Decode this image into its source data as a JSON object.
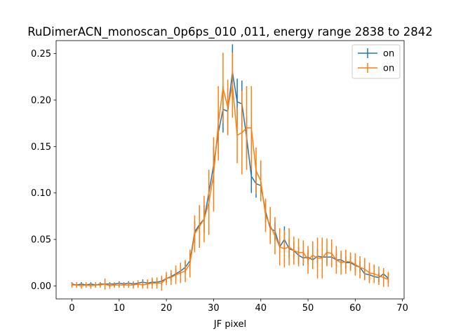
{
  "chart_data": {
    "type": "line",
    "title": "RuDimerACN_monoscan_0p6ps_010 ,011, energy range 2838 to 2842",
    "xlabel": "JF pixel",
    "ylabel": "",
    "xlim": [
      -3.35,
      70.35
    ],
    "ylim": [
      -0.014,
      0.264
    ],
    "xticks": [
      0,
      10,
      20,
      30,
      40,
      50,
      60,
      70
    ],
    "yticks": [
      0.0,
      0.05,
      0.1,
      0.15,
      0.2,
      0.25
    ],
    "xtick_labels": [
      "0",
      "10",
      "20",
      "30",
      "40",
      "50",
      "60",
      "70"
    ],
    "ytick_labels": [
      "0.00",
      "0.05",
      "0.10",
      "0.15",
      "0.20",
      "0.25"
    ],
    "grid": false,
    "legend_position": "top-right",
    "x": [
      0,
      1,
      2,
      3,
      4,
      5,
      6,
      7,
      8,
      9,
      10,
      11,
      12,
      13,
      14,
      15,
      16,
      17,
      18,
      19,
      20,
      21,
      22,
      23,
      24,
      25,
      26,
      27,
      28,
      29,
      30,
      31,
      32,
      33,
      34,
      35,
      36,
      37,
      38,
      39,
      40,
      41,
      42,
      43,
      44,
      45,
      46,
      47,
      48,
      49,
      50,
      51,
      52,
      53,
      54,
      55,
      56,
      57,
      58,
      59,
      60,
      61,
      62,
      63,
      64,
      65,
      66,
      67
    ],
    "series": [
      {
        "name": "on",
        "color": "#1f77b4",
        "values": [
          0.002,
          0.001,
          0.002,
          0.001,
          0.002,
          0.001,
          0.002,
          0.002,
          0.002,
          0.002,
          0.003,
          0.002,
          0.003,
          0.002,
          0.003,
          0.004,
          0.003,
          0.004,
          0.004,
          0.005,
          0.008,
          0.01,
          0.013,
          0.016,
          0.02,
          0.027,
          0.058,
          0.066,
          0.072,
          0.1,
          0.13,
          0.165,
          0.19,
          0.188,
          0.23,
          0.198,
          0.196,
          0.16,
          0.118,
          0.11,
          0.108,
          0.08,
          0.062,
          0.059,
          0.042,
          0.05,
          0.04,
          0.038,
          0.033,
          0.03,
          0.031,
          0.028,
          0.032,
          0.031,
          0.031,
          0.031,
          0.028,
          0.028,
          0.025,
          0.025,
          0.022,
          0.02,
          0.013,
          0.012,
          0.01,
          0.009,
          0.013,
          0.008
        ],
        "errors": [
          0.002,
          0.002,
          0.002,
          0.002,
          0.002,
          0.002,
          0.002,
          0.002,
          0.002,
          0.002,
          0.002,
          0.002,
          0.002,
          0.002,
          0.003,
          0.003,
          0.003,
          0.003,
          0.003,
          0.004,
          0.004,
          0.004,
          0.005,
          0.005,
          0.006,
          0.009,
          0.012,
          0.013,
          0.015,
          0.017,
          0.02,
          0.023,
          0.025,
          0.025,
          0.03,
          0.025,
          0.025,
          0.022,
          0.018,
          0.015,
          0.014,
          0.012,
          0.01,
          0.01,
          0.009,
          0.014,
          0.01,
          0.009,
          0.009,
          0.008,
          0.008,
          0.008,
          0.008,
          0.008,
          0.008,
          0.008,
          0.007,
          0.007,
          0.007,
          0.007,
          0.007,
          0.006,
          0.006,
          0.006,
          0.005,
          0.005,
          0.006,
          0.005
        ]
      },
      {
        "name": "on",
        "color": "#ff7f0e",
        "values": [
          0.001,
          0.001,
          0.0,
          0.001,
          0.0,
          0.001,
          0.001,
          0.002,
          0.0,
          0.001,
          0.001,
          0.001,
          0.001,
          0.001,
          0.002,
          0.001,
          0.002,
          0.003,
          0.003,
          0.003,
          0.008,
          0.009,
          0.012,
          0.014,
          0.016,
          0.024,
          0.056,
          0.064,
          0.072,
          0.09,
          0.12,
          0.175,
          0.213,
          0.192,
          0.216,
          0.162,
          0.165,
          0.17,
          0.17,
          0.124,
          0.113,
          0.076,
          0.065,
          0.054,
          0.042,
          0.04,
          0.042,
          0.038,
          0.036,
          0.036,
          0.028,
          0.033,
          0.03,
          0.03,
          0.036,
          0.035,
          0.028,
          0.025,
          0.026,
          0.026,
          0.023,
          0.02,
          0.018,
          0.014,
          0.013,
          0.011,
          0.009,
          0.007
        ],
        "errors": [
          0.003,
          0.003,
          0.003,
          0.003,
          0.003,
          0.003,
          0.003,
          0.006,
          0.003,
          0.003,
          0.003,
          0.003,
          0.003,
          0.004,
          0.004,
          0.004,
          0.005,
          0.006,
          0.006,
          0.008,
          0.007,
          0.008,
          0.01,
          0.011,
          0.012,
          0.015,
          0.02,
          0.023,
          0.025,
          0.035,
          0.04,
          0.04,
          0.038,
          0.03,
          0.035,
          0.03,
          0.045,
          0.045,
          0.045,
          0.025,
          0.022,
          0.018,
          0.02,
          0.02,
          0.02,
          0.02,
          0.02,
          0.015,
          0.015,
          0.013,
          0.015,
          0.015,
          0.022,
          0.022,
          0.015,
          0.015,
          0.015,
          0.013,
          0.013,
          0.01,
          0.012,
          0.012,
          0.012,
          0.011,
          0.01,
          0.01,
          0.01,
          0.008
        ]
      }
    ]
  }
}
